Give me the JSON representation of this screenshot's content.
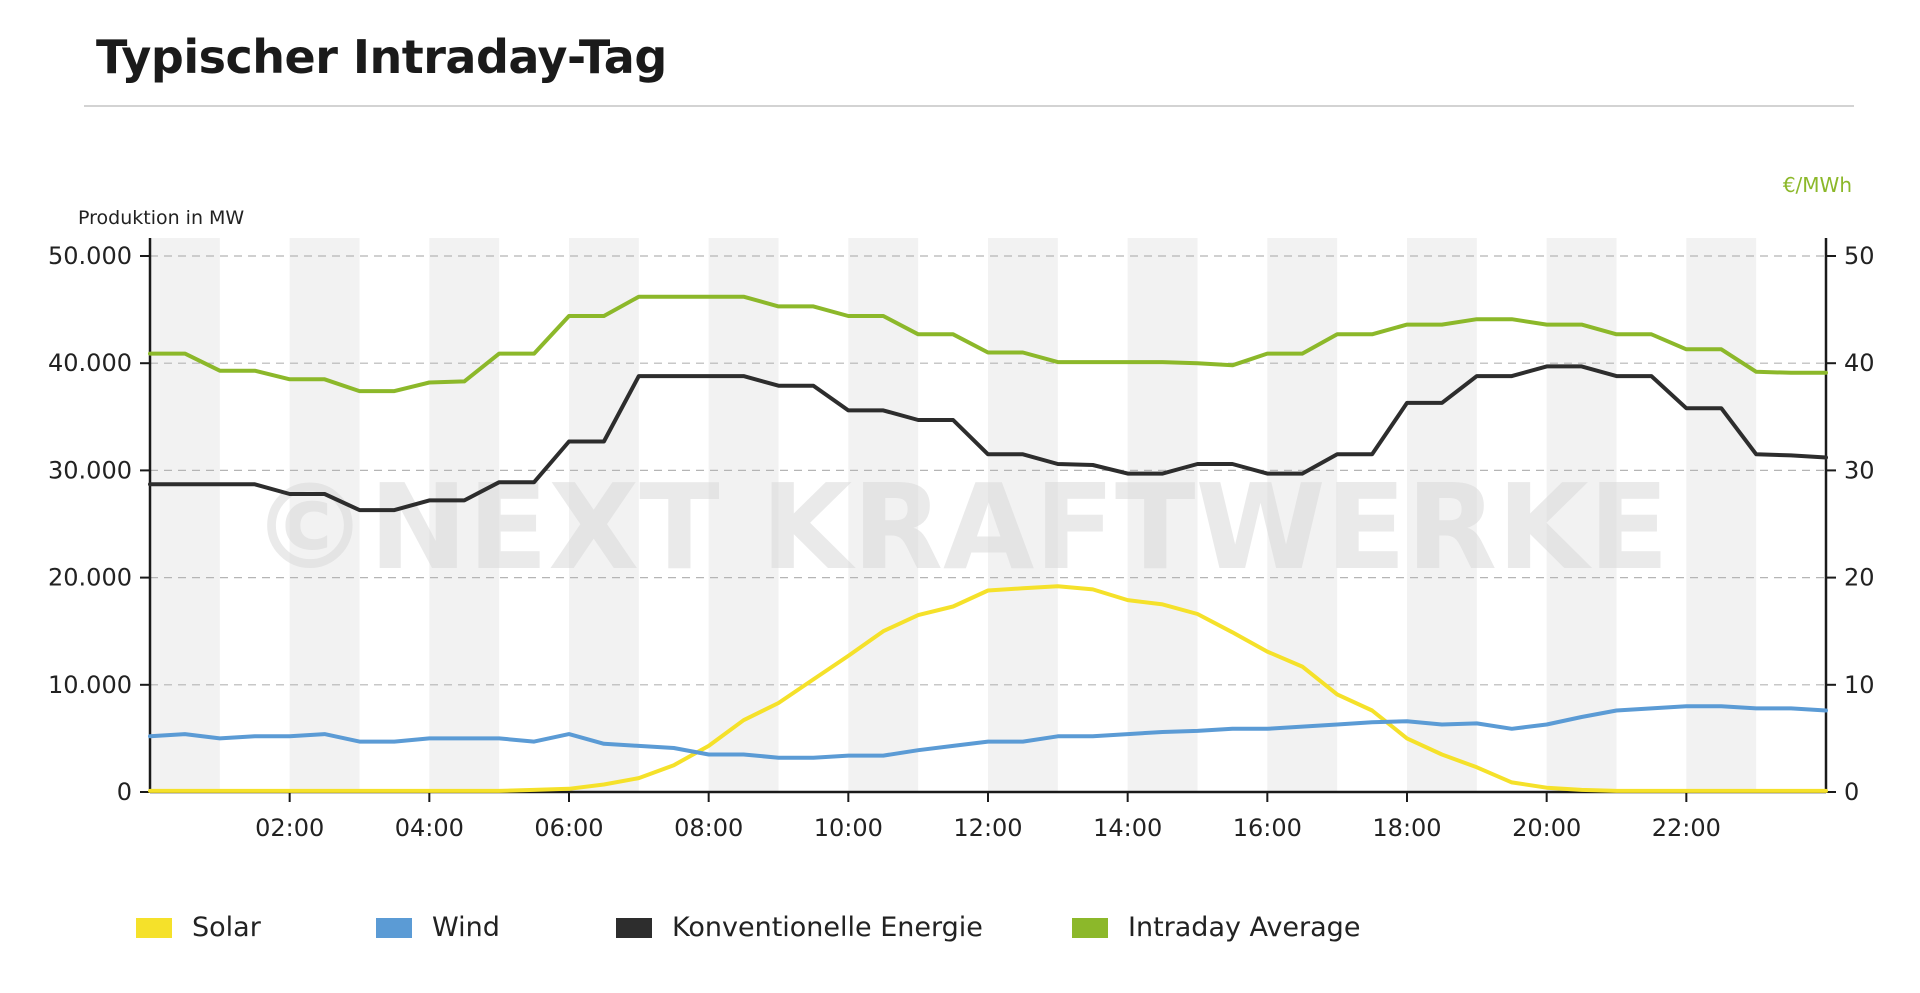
{
  "title": "Typischer Intraday-Tag",
  "watermark": "©NEXT KRAFTWERKE",
  "colors": {
    "solar": "#f5e12a",
    "wind": "#5b9bd5",
    "konventionell": "#2d2d2d",
    "intraday": "#8cb82a"
  },
  "chart_data": {
    "type": "line",
    "x_unit": "hours",
    "xlim": [
      0,
      24
    ],
    "x_ticks": [
      "02:00",
      "04:00",
      "06:00",
      "08:00",
      "10:00",
      "12:00",
      "14:00",
      "16:00",
      "18:00",
      "20:00",
      "22:00"
    ],
    "x_tick_values": [
      2,
      4,
      6,
      8,
      10,
      12,
      14,
      16,
      18,
      20,
      22
    ],
    "ylabel": "Produktion in MW",
    "ylim": [
      0,
      50000
    ],
    "y_ticks": [
      "0",
      "10.000",
      "20.000",
      "30.000",
      "40.000",
      "50.000"
    ],
    "y_tick_values": [
      0,
      10000,
      20000,
      30000,
      40000,
      50000
    ],
    "y2label": "€/MWh",
    "y2lim": [
      0,
      50
    ],
    "y2_ticks": [
      "0",
      "10",
      "20",
      "30",
      "40",
      "50"
    ],
    "y2_tick_values": [
      0,
      10,
      20,
      30,
      40,
      50
    ],
    "grid": true,
    "legend_position": "bottom",
    "series": [
      {
        "name": "Solar",
        "axis": "left",
        "color": "#f5e12a",
        "points": [
          [
            0,
            100
          ],
          [
            1,
            100
          ],
          [
            2,
            100
          ],
          [
            3,
            100
          ],
          [
            4,
            100
          ],
          [
            5,
            100
          ],
          [
            5.5,
            200
          ],
          [
            6,
            300
          ],
          [
            6.5,
            700
          ],
          [
            7,
            1300
          ],
          [
            7.5,
            2500
          ],
          [
            8,
            4300
          ],
          [
            8.5,
            6700
          ],
          [
            9,
            8300
          ],
          [
            9.5,
            10500
          ],
          [
            10,
            12700
          ],
          [
            10.5,
            15000
          ],
          [
            11,
            16500
          ],
          [
            11.5,
            17300
          ],
          [
            12,
            18800
          ],
          [
            12.5,
            19000
          ],
          [
            13,
            19200
          ],
          [
            13.5,
            18900
          ],
          [
            14,
            17900
          ],
          [
            14.5,
            17500
          ],
          [
            15,
            16600
          ],
          [
            15.5,
            14900
          ],
          [
            16,
            13100
          ],
          [
            16.5,
            11700
          ],
          [
            17,
            9100
          ],
          [
            17.5,
            7600
          ],
          [
            18,
            5000
          ],
          [
            18.5,
            3500
          ],
          [
            19,
            2300
          ],
          [
            19.5,
            900
          ],
          [
            20,
            400
          ],
          [
            20.5,
            200
          ],
          [
            21,
            100
          ],
          [
            22,
            100
          ],
          [
            23,
            100
          ],
          [
            24,
            100
          ]
        ]
      },
      {
        "name": "Wind",
        "axis": "left",
        "color": "#5b9bd5",
        "points": [
          [
            0,
            5200
          ],
          [
            0.5,
            5400
          ],
          [
            1,
            5000
          ],
          [
            1.5,
            5200
          ],
          [
            2,
            5200
          ],
          [
            2.5,
            5400
          ],
          [
            3,
            4700
          ],
          [
            3.5,
            4700
          ],
          [
            4,
            5000
          ],
          [
            4.5,
            5000
          ],
          [
            5,
            5000
          ],
          [
            5.5,
            4700
          ],
          [
            6,
            5400
          ],
          [
            6.5,
            4500
          ],
          [
            7,
            4300
          ],
          [
            7.5,
            4100
          ],
          [
            8,
            3500
          ],
          [
            8.5,
            3500
          ],
          [
            9,
            3200
          ],
          [
            9.5,
            3200
          ],
          [
            10,
            3400
          ],
          [
            10.5,
            3400
          ],
          [
            11,
            3900
          ],
          [
            11.5,
            4300
          ],
          [
            12,
            4700
          ],
          [
            12.5,
            4700
          ],
          [
            13,
            5200
          ],
          [
            13.5,
            5200
          ],
          [
            14,
            5400
          ],
          [
            14.5,
            5600
          ],
          [
            15,
            5700
          ],
          [
            15.5,
            5900
          ],
          [
            16,
            5900
          ],
          [
            16.5,
            6100
          ],
          [
            17,
            6300
          ],
          [
            17.5,
            6500
          ],
          [
            18,
            6600
          ],
          [
            18.5,
            6300
          ],
          [
            19,
            6400
          ],
          [
            19.5,
            5900
          ],
          [
            20,
            6300
          ],
          [
            20.5,
            7000
          ],
          [
            21,
            7600
          ],
          [
            21.5,
            7800
          ],
          [
            22,
            8000
          ],
          [
            22.5,
            8000
          ],
          [
            23,
            7800
          ],
          [
            23.5,
            7800
          ],
          [
            24,
            7600
          ]
        ]
      },
      {
        "name": "Konventionelle Energie",
        "axis": "left",
        "color": "#2d2d2d",
        "points": [
          [
            0,
            28700
          ],
          [
            1,
            28700
          ],
          [
            1.5,
            28700
          ],
          [
            2,
            27800
          ],
          [
            2.5,
            27800
          ],
          [
            3,
            26300
          ],
          [
            3.5,
            26300
          ],
          [
            4,
            27200
          ],
          [
            4.5,
            27200
          ],
          [
            5,
            28900
          ],
          [
            5.5,
            28900
          ],
          [
            6,
            32700
          ],
          [
            6.5,
            32700
          ],
          [
            7,
            38800
          ],
          [
            8,
            38800
          ],
          [
            8.5,
            38800
          ],
          [
            9,
            37900
          ],
          [
            9.5,
            37900
          ],
          [
            10,
            35600
          ],
          [
            10.5,
            35600
          ],
          [
            11,
            34700
          ],
          [
            11.5,
            34700
          ],
          [
            12,
            31500
          ],
          [
            12.5,
            31500
          ],
          [
            13,
            30600
          ],
          [
            13.5,
            30500
          ],
          [
            14,
            29700
          ],
          [
            14.5,
            29700
          ],
          [
            15,
            30600
          ],
          [
            15.5,
            30600
          ],
          [
            16,
            29700
          ],
          [
            16.5,
            29700
          ],
          [
            17,
            31500
          ],
          [
            17.5,
            31500
          ],
          [
            18,
            36300
          ],
          [
            18.5,
            36300
          ],
          [
            19,
            38800
          ],
          [
            19.5,
            38800
          ],
          [
            20,
            39700
          ],
          [
            20.5,
            39700
          ],
          [
            21,
            38800
          ],
          [
            21.5,
            38800
          ],
          [
            22,
            35800
          ],
          [
            22.5,
            35800
          ],
          [
            23,
            31500
          ],
          [
            23.5,
            31400
          ],
          [
            24,
            31200
          ]
        ]
      },
      {
        "name": "Intraday Average",
        "axis": "right",
        "color": "#8cb82a",
        "points": [
          [
            0,
            40.9
          ],
          [
            0.5,
            40.9
          ],
          [
            1,
            39.3
          ],
          [
            1.5,
            39.3
          ],
          [
            2,
            38.5
          ],
          [
            2.5,
            38.5
          ],
          [
            3,
            37.4
          ],
          [
            3.5,
            37.4
          ],
          [
            4,
            38.2
          ],
          [
            4.5,
            38.3
          ],
          [
            5,
            40.9
          ],
          [
            5.5,
            40.9
          ],
          [
            6,
            44.4
          ],
          [
            6.5,
            44.4
          ],
          [
            7,
            46.2
          ],
          [
            7.5,
            46.2
          ],
          [
            8,
            46.2
          ],
          [
            8.5,
            46.2
          ],
          [
            9,
            45.3
          ],
          [
            9.5,
            45.3
          ],
          [
            10,
            44.4
          ],
          [
            10.5,
            44.4
          ],
          [
            11,
            42.7
          ],
          [
            11.5,
            42.7
          ],
          [
            12,
            41.0
          ],
          [
            12.5,
            41.0
          ],
          [
            13,
            40.1
          ],
          [
            13.5,
            40.1
          ],
          [
            14,
            40.1
          ],
          [
            14.5,
            40.1
          ],
          [
            15,
            40.0
          ],
          [
            15.5,
            39.8
          ],
          [
            16,
            40.9
          ],
          [
            16.5,
            40.9
          ],
          [
            17,
            42.7
          ],
          [
            17.5,
            42.7
          ],
          [
            18,
            43.6
          ],
          [
            18.5,
            43.6
          ],
          [
            19,
            44.1
          ],
          [
            19.5,
            44.1
          ],
          [
            20,
            43.6
          ],
          [
            20.5,
            43.6
          ],
          [
            21,
            42.7
          ],
          [
            21.5,
            42.7
          ],
          [
            22,
            41.3
          ],
          [
            22.5,
            41.3
          ],
          [
            23,
            39.2
          ],
          [
            23.5,
            39.1
          ],
          [
            24,
            39.1
          ]
        ]
      }
    ]
  }
}
